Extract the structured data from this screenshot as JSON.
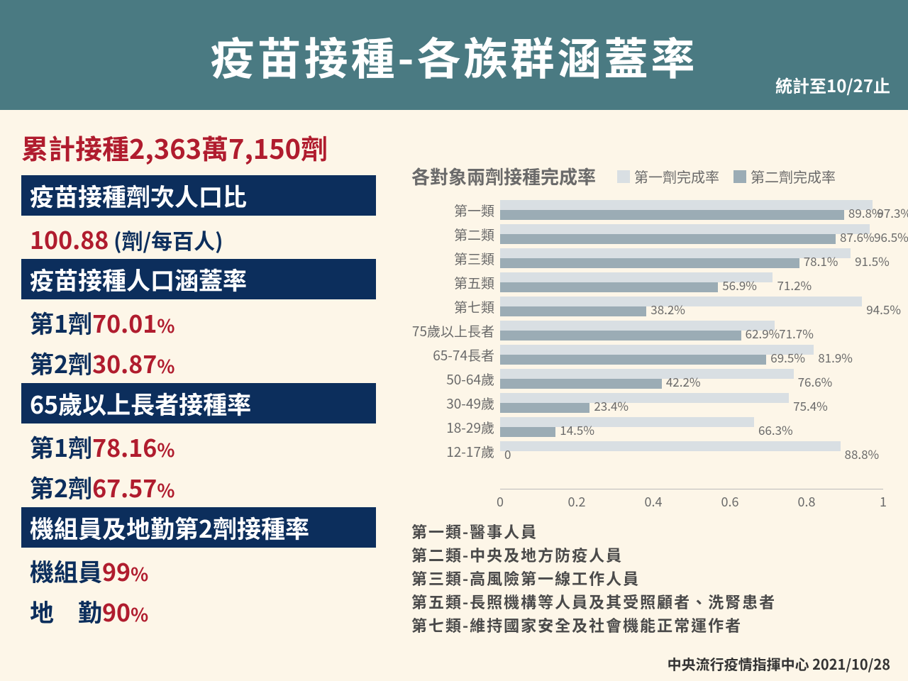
{
  "header": {
    "title": "疫苗接種-各族群涵蓋率",
    "subtitle": "統計至10/27止"
  },
  "total": "累計接種2,363萬7,150劑",
  "sections": [
    {
      "header": "疫苗接種劑次人口比",
      "lines": [
        {
          "label": "",
          "value": "100.88",
          "unit": " (劑/每百人)"
        }
      ]
    },
    {
      "header": "疫苗接種人口涵蓋率",
      "lines": [
        {
          "label": "第1劑",
          "value": "70.01",
          "unit": "%"
        },
        {
          "label": "第2劑",
          "value": "30.87",
          "unit": "%"
        }
      ]
    },
    {
      "header": "65歲以上長者接種率",
      "lines": [
        {
          "label": "第1劑",
          "value": "78.16",
          "unit": "%"
        },
        {
          "label": "第2劑",
          "value": "67.57",
          "unit": "%"
        }
      ]
    },
    {
      "header": "機組員及地勤第2劑接種率",
      "lines": [
        {
          "label": "機組員",
          "value": "99",
          "unit": "%"
        },
        {
          "label": "地　勤",
          "value": "90",
          "unit": "%"
        }
      ]
    }
  ],
  "chart": {
    "title": "各對象兩劑接種完成率",
    "type": "bar",
    "legend": [
      {
        "label": "第一劑完成率",
        "color": "#d9dfe3"
      },
      {
        "label": "第二劑完成率",
        "color": "#9bacb5"
      }
    ],
    "xlim": [
      0,
      1
    ],
    "xticks": [
      "0",
      "0.2",
      "0.4",
      "0.6",
      "0.8",
      "1"
    ],
    "bar_color_first": "#d9dfe3",
    "bar_color_second": "#9bacb5",
    "label_color": "#6a6a6a",
    "rows": [
      {
        "label": "第一類",
        "first": 0.973,
        "second": 0.898,
        "first_txt": "97.3%",
        "second_txt": "89.8%"
      },
      {
        "label": "第二類",
        "first": 0.965,
        "second": 0.876,
        "first_txt": "96.5%",
        "second_txt": "87.6%"
      },
      {
        "label": "第三類",
        "first": 0.915,
        "second": 0.781,
        "first_txt": "91.5%",
        "second_txt": "78.1%"
      },
      {
        "label": "第五類",
        "first": 0.712,
        "second": 0.569,
        "first_txt": "71.2%",
        "second_txt": "56.9%"
      },
      {
        "label": "第七類",
        "first": 0.945,
        "second": 0.382,
        "first_txt": "94.5%",
        "second_txt": "38.2%"
      },
      {
        "label": "75歲以上長者",
        "first": 0.717,
        "second": 0.629,
        "first_txt": "71.7%",
        "second_txt": "62.9%"
      },
      {
        "label": "65-74長者",
        "first": 0.819,
        "second": 0.695,
        "first_txt": "81.9%",
        "second_txt": "69.5%"
      },
      {
        "label": "50-64歲",
        "first": 0.766,
        "second": 0.422,
        "first_txt": "76.6%",
        "second_txt": "42.2%"
      },
      {
        "label": "30-49歲",
        "first": 0.754,
        "second": 0.234,
        "first_txt": "75.4%",
        "second_txt": "23.4%"
      },
      {
        "label": "18-29歲",
        "first": 0.663,
        "second": 0.145,
        "first_txt": "66.3%",
        "second_txt": "14.5%"
      },
      {
        "label": "12-17歲",
        "first": 0.888,
        "second": 0.0,
        "first_txt": "88.8%",
        "second_txt": "0"
      }
    ]
  },
  "footnotes": [
    "第一類-醫事人員",
    "第二類-中央及地方防疫人員",
    "第三類-高風險第一線工作人員",
    "第五類-長照機構等人員及其受照顧者、洗腎患者",
    "第七類-維持國家安全及社會機能正常運作者"
  ],
  "source": "中央流行疫情指揮中心 2021/10/28",
  "colors": {
    "header_bg": "#4a7a82",
    "body_bg": "#fdf6e8",
    "block_bg": "#0c2e5c",
    "accent_red": "#b01c2e",
    "accent_navy": "#0c2e5c"
  }
}
